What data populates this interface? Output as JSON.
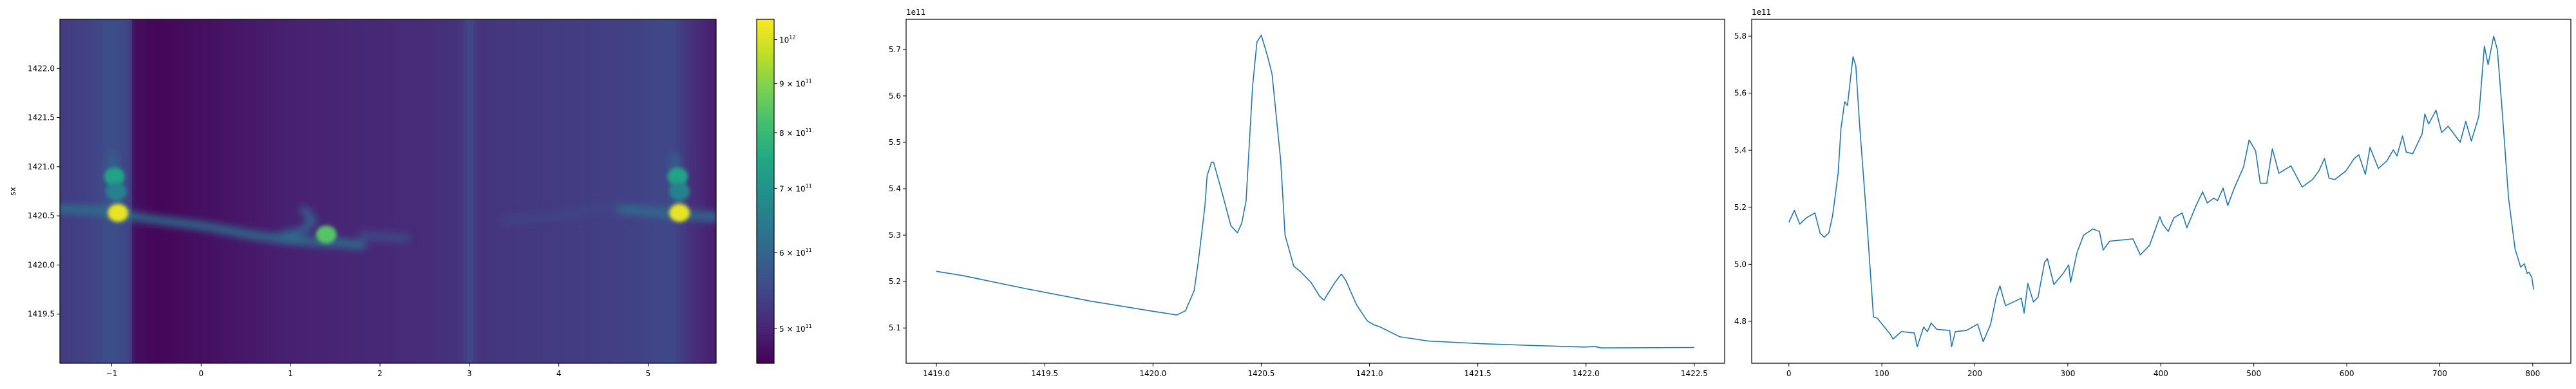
{
  "chart_data": [
    {
      "type": "heatmap",
      "ylabel": "sx",
      "xlim": [
        -1.58,
        5.76
      ],
      "ylim": [
        1419.0,
        1422.5
      ],
      "xticks": [
        -1,
        0,
        1,
        2,
        3,
        4,
        5
      ],
      "xtick_labels": [
        "−1",
        "0",
        "1",
        "2",
        "3",
        "4",
        "5"
      ],
      "yticks": [
        1419.5,
        1420.0,
        1420.5,
        1421.0,
        1421.5,
        1422.0
      ],
      "ytick_labels": [
        "1419.5",
        "1420.0",
        "1420.5",
        "1421.0",
        "1421.5",
        "1422.0"
      ],
      "colormap": "viridis",
      "color_scale": "log",
      "clim": [
        460000000000.0,
        1050000000000.0
      ],
      "colorbar": {
        "ticks": [
          500000000000.0,
          600000000000.0,
          700000000000.0,
          800000000000.0,
          900000000000.0,
          1000000000000.0
        ],
        "tick_labels": [
          {
            "base": "5 × 10",
            "exp": "11"
          },
          {
            "base": "6 × 10",
            "exp": "11"
          },
          {
            "base": "7 × 10",
            "exp": "11"
          },
          {
            "base": "8 × 10",
            "exp": "11"
          },
          {
            "base": "9 × 10",
            "exp": "11"
          },
          {
            "base": "10",
            "exp": "12"
          }
        ]
      },
      "column_profile": {
        "x": [
          -1.58,
          -1.2,
          -1.05,
          -0.95,
          -0.8,
          -0.75,
          -0.5,
          0.0,
          0.5,
          1.0,
          1.5,
          2.0,
          2.5,
          2.9,
          3.0,
          3.1,
          3.5,
          4.0,
          4.5,
          4.9,
          5.25,
          5.45,
          5.76
        ],
        "value": [
          530000000000.0,
          540000000000.0,
          560000000000.0,
          560000000000.0,
          540000000000.0,
          475000000000.0,
          465000000000.0,
          475000000000.0,
          485000000000.0,
          495000000000.0,
          500000000000.0,
          505000000000.0,
          510000000000.0,
          520000000000.0,
          550000000000.0,
          520000000000.0,
          525000000000.0,
          530000000000.0,
          535000000000.0,
          540000000000.0,
          550000000000.0,
          520000000000.0,
          490000000000.0
        ]
      },
      "ridges": [
        {
          "value": 630000000000.0,
          "points": [
            [
              -1.58,
              1420.57
            ],
            [
              -1.1,
              1420.55
            ],
            [
              -0.6,
              1420.47
            ],
            [
              0.0,
              1420.4
            ],
            [
              0.6,
              1420.3
            ],
            [
              1.0,
              1420.25
            ],
            [
              1.6,
              1420.22
            ],
            [
              1.8,
              1420.2
            ]
          ]
        },
        {
          "value": 600000000000.0,
          "points": [
            [
              0.9,
              1420.3
            ],
            [
              1.15,
              1420.35
            ],
            [
              1.25,
              1420.45
            ],
            [
              1.15,
              1420.56
            ]
          ]
        },
        {
          "value": 560000000000.0,
          "points": [
            [
              1.8,
              1420.3
            ],
            [
              2.3,
              1420.27
            ]
          ]
        },
        {
          "value": 545000000000.0,
          "points": [
            [
              3.4,
              1420.45
            ],
            [
              4.0,
              1420.5
            ],
            [
              4.5,
              1420.58
            ],
            [
              5.0,
              1420.53
            ],
            [
              5.76,
              1420.5
            ]
          ]
        },
        {
          "value": 620000000000.0,
          "points": [
            [
              4.7,
              1420.57
            ],
            [
              5.2,
              1420.53
            ],
            [
              5.76,
              1420.48
            ]
          ]
        },
        {
          "value": 600000000000.0,
          "points": [
            [
              -0.95,
              1420.5
            ],
            [
              -0.97,
              1420.8
            ],
            [
              -1.0,
              1421.1
            ]
          ]
        },
        {
          "value": 600000000000.0,
          "points": [
            [
              5.35,
              1420.5
            ],
            [
              5.33,
              1420.8
            ],
            [
              5.3,
              1421.1
            ]
          ]
        }
      ],
      "hotspots": [
        {
          "x": -0.93,
          "y": 1420.53,
          "value": 1020000000000.0
        },
        {
          "x": -0.97,
          "y": 1420.9,
          "value": 740000000000.0
        },
        {
          "x": -0.95,
          "y": 1420.75,
          "value": 660000000000.0
        },
        {
          "x": 1.4,
          "y": 1420.31,
          "value": 840000000000.0
        },
        {
          "x": 5.35,
          "y": 1420.53,
          "value": 1020000000000.0
        },
        {
          "x": 5.33,
          "y": 1420.9,
          "value": 740000000000.0
        },
        {
          "x": 5.35,
          "y": 1420.75,
          "value": 660000000000.0
        }
      ]
    },
    {
      "type": "line",
      "offset_text": "1e11",
      "xlim": [
        1418.86,
        1422.64
      ],
      "ylim": [
        5.024,
        5.765
      ],
      "xticks": [
        1419.0,
        1419.5,
        1420.0,
        1420.5,
        1421.0,
        1421.5,
        1422.0,
        1422.5
      ],
      "xtick_labels": [
        "1419.0",
        "1419.5",
        "1420.0",
        "1420.5",
        "1421.0",
        "1421.5",
        "1422.0",
        "1422.5"
      ],
      "yticks": [
        5.1,
        5.2,
        5.3,
        5.4,
        5.5,
        5.6,
        5.7
      ],
      "ytick_labels": [
        "5.1",
        "5.2",
        "5.3",
        "5.4",
        "5.5",
        "5.6",
        "5.7"
      ],
      "series": [
        {
          "color": "#1f77b4",
          "x": [
            1419.0,
            1419.12,
            1419.41,
            1419.71,
            1420.0,
            1420.11,
            1420.15,
            1420.19,
            1420.21,
            1420.24,
            1420.25,
            1420.27,
            1420.28,
            1420.32,
            1420.36,
            1420.39,
            1420.41,
            1420.43,
            1420.46,
            1420.48,
            1420.5,
            1420.53,
            1420.55,
            1420.59,
            1420.61,
            1420.65,
            1420.68,
            1420.73,
            1420.77,
            1420.79,
            1420.8,
            1420.84,
            1420.87,
            1420.89,
            1420.94,
            1420.99,
            1421.02,
            1421.05,
            1421.14,
            1421.17,
            1421.27,
            1421.52,
            1421.77,
            1421.99,
            1422.04,
            1422.07,
            1422.5
          ],
          "y": [
            5.222,
            5.213,
            5.185,
            5.158,
            5.136,
            5.128,
            5.137,
            5.18,
            5.245,
            5.363,
            5.428,
            5.457,
            5.457,
            5.39,
            5.32,
            5.305,
            5.326,
            5.374,
            5.62,
            5.716,
            5.731,
            5.684,
            5.647,
            5.46,
            5.3,
            5.233,
            5.222,
            5.198,
            5.168,
            5.16,
            5.168,
            5.198,
            5.216,
            5.203,
            5.15,
            5.115,
            5.107,
            5.102,
            5.081,
            5.079,
            5.072,
            5.066,
            5.062,
            5.059,
            5.06,
            5.057,
            5.058
          ]
        }
      ]
    },
    {
      "type": "line",
      "offset_text": "1e11",
      "xlim": [
        -40,
        841
      ],
      "ylim": [
        4.653,
        5.859
      ],
      "xticks": [
        0,
        100,
        200,
        300,
        400,
        500,
        600,
        700,
        800
      ],
      "xtick_labels": [
        "0",
        "100",
        "200",
        "300",
        "400",
        "500",
        "600",
        "700",
        "800"
      ],
      "yticks": [
        4.8,
        5.0,
        5.2,
        5.4,
        5.6,
        5.8
      ],
      "ytick_labels": [
        "4.8",
        "5.0",
        "5.2",
        "5.4",
        "5.6",
        "5.8"
      ],
      "series": [
        {
          "color": "#1f77b4",
          "x": [
            0,
            5.9,
            11.7,
            18.8,
            28,
            33.5,
            38,
            43,
            47,
            53,
            56,
            60,
            63,
            69,
            72,
            76,
            84,
            91,
            95,
            109,
            112,
            121,
            135,
            138,
            145,
            149,
            153,
            159,
            173,
            175,
            179,
            191,
            203,
            209,
            217,
            223,
            227,
            233,
            250,
            253,
            257,
            263,
            268,
            275,
            278,
            285,
            295,
            301,
            303,
            310,
            317,
            327,
            334,
            338,
            345,
            370,
            378,
            388,
            399,
            402,
            408,
            414,
            423,
            428,
            438,
            445,
            450,
            457,
            461,
            467,
            472,
            479,
            489,
            495,
            502,
            507,
            514,
            520,
            527,
            540,
            552,
            563,
            570,
            576,
            581,
            587,
            599,
            608,
            613,
            620,
            625,
            634,
            643,
            650,
            654,
            660,
            664,
            671,
            681,
            684,
            688,
            696,
            702,
            709,
            722,
            728,
            734,
            742,
            748,
            752,
            758,
            762,
            767,
            774,
            781,
            787,
            791,
            794,
            796,
            799,
            801
          ],
          "y": [
            5.147,
            5.189,
            5.141,
            5.163,
            5.18,
            5.11,
            5.095,
            5.11,
            5.17,
            5.319,
            5.475,
            5.57,
            5.557,
            5.728,
            5.696,
            5.492,
            5.145,
            4.815,
            4.811,
            4.755,
            4.738,
            4.764,
            4.759,
            4.711,
            4.78,
            4.764,
            4.794,
            4.772,
            4.768,
            4.711,
            4.764,
            4.768,
            4.79,
            4.729,
            4.79,
            4.885,
            4.924,
            4.855,
            4.881,
            4.829,
            4.933,
            4.868,
            4.885,
            5.007,
            5.02,
            4.929,
            4.968,
            4.998,
            4.937,
            5.042,
            5.102,
            5.124,
            5.115,
            5.05,
            5.081,
            5.089,
            5.033,
            5.067,
            5.167,
            5.141,
            5.115,
            5.163,
            5.18,
            5.128,
            5.206,
            5.254,
            5.215,
            5.232,
            5.223,
            5.267,
            5.206,
            5.267,
            5.341,
            5.436,
            5.397,
            5.284,
            5.284,
            5.405,
            5.319,
            5.345,
            5.271,
            5.297,
            5.327,
            5.371,
            5.302,
            5.297,
            5.327,
            5.371,
            5.384,
            5.315,
            5.41,
            5.336,
            5.362,
            5.401,
            5.38,
            5.45,
            5.393,
            5.388,
            5.457,
            5.527,
            5.492,
            5.54,
            5.462,
            5.484,
            5.428,
            5.501,
            5.432,
            5.519,
            5.765,
            5.7,
            5.8,
            5.752,
            5.544,
            5.232,
            5.054,
            4.99,
            5.002,
            4.968,
            4.972,
            4.954,
            4.911
          ]
        }
      ]
    }
  ]
}
